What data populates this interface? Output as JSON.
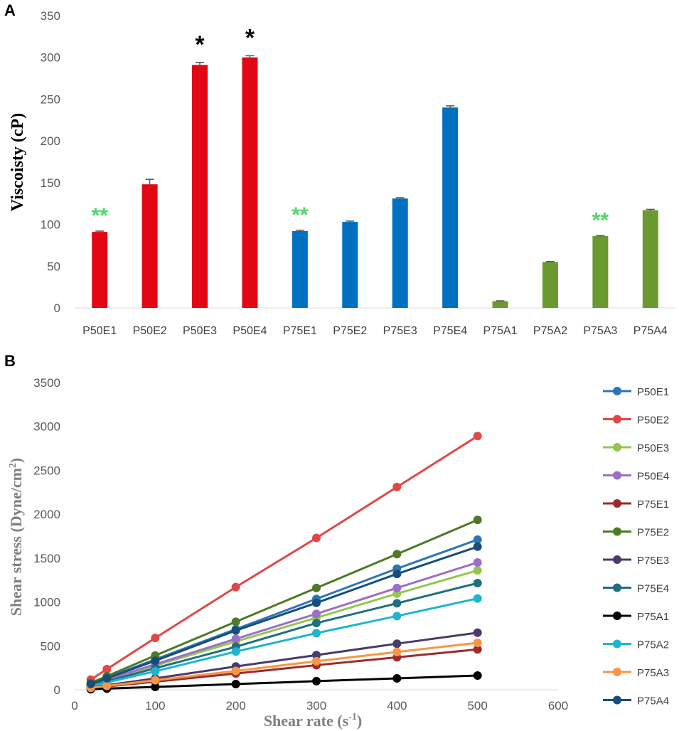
{
  "chart_data": [
    {
      "type": "bar",
      "panel": "A",
      "title": "",
      "xlabel": "",
      "ylabel": "Viscoisty (cP)",
      "ylim": [
        0,
        350
      ],
      "yticks": [
        0,
        50,
        100,
        150,
        200,
        250,
        300,
        350
      ],
      "categories": [
        "P50E1",
        "P50E2",
        "P50E3",
        "P50E4",
        "P75E1",
        "P75E2",
        "P75E3",
        "P75E4",
        "P75A1",
        "P75A2",
        "P75A3",
        "P75A4"
      ],
      "values": [
        91,
        148,
        291,
        300,
        92,
        103,
        131,
        240,
        8,
        55,
        86,
        117
      ],
      "errors": [
        1,
        6,
        3,
        2,
        1,
        1,
        1,
        2,
        0.5,
        0.5,
        0.5,
        1
      ],
      "colors": [
        "#e30613",
        "#e30613",
        "#e30613",
        "#e30613",
        "#0070c0",
        "#0070c0",
        "#0070c0",
        "#0070c0",
        "#6a992f",
        "#6a992f",
        "#6a992f",
        "#6a992f"
      ],
      "annotations": [
        {
          "category": "P50E1",
          "text": "**",
          "color": "#4fd66a"
        },
        {
          "category": "P50E3",
          "text": "*",
          "color": "#000000"
        },
        {
          "category": "P50E4",
          "text": "*",
          "color": "#000000"
        },
        {
          "category": "P75E1",
          "text": "**",
          "color": "#4fd66a"
        },
        {
          "category": "P75A3",
          "text": "**",
          "color": "#4fd66a"
        }
      ]
    },
    {
      "type": "line",
      "panel": "B",
      "title": "",
      "xlabel": "Shear rate (s",
      "xlabel_sup": "-1",
      "xlabel_end": ")",
      "ylabel": "Shear stress (Dyne/cm",
      "ylabel_sup": "2",
      "ylabel_end": ")",
      "xlim": [
        0,
        600
      ],
      "ylim": [
        0,
        3500
      ],
      "xticks": [
        0,
        100,
        200,
        300,
        400,
        500,
        600
      ],
      "yticks": [
        0,
        500,
        1000,
        1500,
        2000,
        2500,
        3000,
        3500
      ],
      "legend_position": "right",
      "x": [
        20,
        40,
        100,
        200,
        300,
        400,
        500
      ],
      "series": [
        {
          "name": "P50E1",
          "color": "#2e75b6",
          "values": [
            70,
            140,
            345,
            690,
            1035,
            1380,
            1710
          ]
        },
        {
          "name": "P50E2",
          "color": "#e04848",
          "values": [
            115,
            235,
            590,
            1170,
            1730,
            2310,
            2890
          ]
        },
        {
          "name": "P50E3",
          "color": "#92c84f",
          "values": [
            55,
            110,
            275,
            550,
            820,
            1095,
            1360
          ]
        },
        {
          "name": "P50E4",
          "color": "#9b6fc4",
          "values": [
            58,
            115,
            290,
            580,
            865,
            1160,
            1450
          ]
        },
        {
          "name": "P75E1",
          "color": "#9e2b2b",
          "values": [
            18,
            37,
            92,
            185,
            280,
            370,
            460
          ]
        },
        {
          "name": "P75E2",
          "color": "#4e7a24",
          "values": [
            78,
            155,
            390,
            775,
            1160,
            1545,
            1935
          ]
        },
        {
          "name": "P75E3",
          "color": "#4b3a6b",
          "values": [
            26,
            52,
            130,
            265,
            395,
            525,
            650
          ]
        },
        {
          "name": "P75E4",
          "color": "#1f6f7f",
          "values": [
            48,
            97,
            245,
            490,
            760,
            985,
            1215
          ]
        },
        {
          "name": "P75A1",
          "color": "#000000",
          "values": [
            6,
            13,
            32,
            65,
            98,
            130,
            162
          ]
        },
        {
          "name": "P75A2",
          "color": "#1fb5d0",
          "values": [
            42,
            84,
            210,
            435,
            645,
            840,
            1040
          ]
        },
        {
          "name": "P75A3",
          "color": "#f79646",
          "values": [
            21,
            43,
            108,
            215,
            325,
            430,
            535
          ]
        },
        {
          "name": "P75A4",
          "color": "#174e79",
          "values": [
            66,
            131,
            330,
            675,
            990,
            1320,
            1630
          ]
        }
      ]
    }
  ],
  "panels": {
    "a": "A",
    "b": "B"
  }
}
